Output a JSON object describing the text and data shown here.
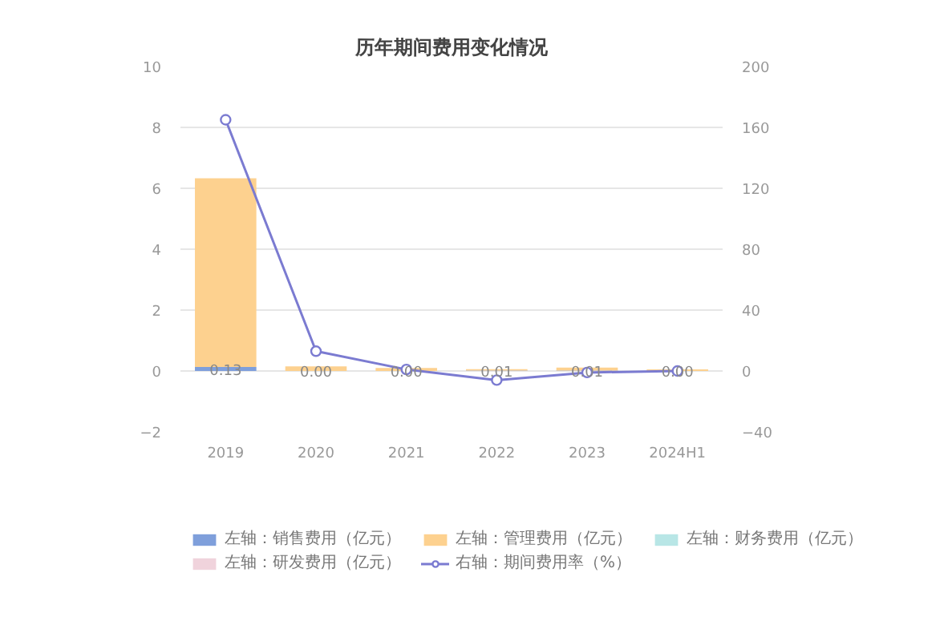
{
  "chart_data": {
    "type": "bar",
    "title": "历年期间费用变化情况",
    "categories": [
      "2019",
      "2020",
      "2021",
      "2022",
      "2023",
      "2024H1"
    ],
    "stacked": true,
    "series": [
      {
        "name": "左轴：销售费用（亿元）",
        "color": "#7f9fdb",
        "values": [
          0.13,
          0.0,
          0.0,
          0.01,
          0.01,
          0.0
        ],
        "value_labels": [
          "0.13",
          "0.00",
          "0.00",
          "0.01",
          "0.01",
          "0.00"
        ]
      },
      {
        "name": "左轴：管理费用（亿元）",
        "color": "#fdd18f",
        "values": [
          6.2,
          0.15,
          0.1,
          0.05,
          0.1,
          0.05
        ]
      },
      {
        "name": "左轴：财务费用（亿元）",
        "color": "#b8e6e6",
        "values": [
          0,
          0,
          0,
          0,
          0,
          0
        ]
      },
      {
        "name": "左轴：研发费用（亿元）",
        "color": "#f0d3dc",
        "values": [
          0,
          0,
          0,
          0,
          0,
          0
        ]
      },
      {
        "name": "右轴：期间费用率（%）",
        "type": "line",
        "axis": "y2",
        "color": "#7b7bd1",
        "values": [
          165,
          13,
          1,
          -6,
          -1,
          0
        ]
      }
    ],
    "ylim": [
      -2,
      10
    ],
    "yticks": [
      -2,
      0,
      2,
      4,
      6,
      8,
      10
    ],
    "y2lim": [
      -40,
      200
    ],
    "y2ticks": [
      -40,
      0,
      40,
      80,
      120,
      160,
      200
    ],
    "grid": "y",
    "legend": "bottom",
    "marker": "circle"
  }
}
